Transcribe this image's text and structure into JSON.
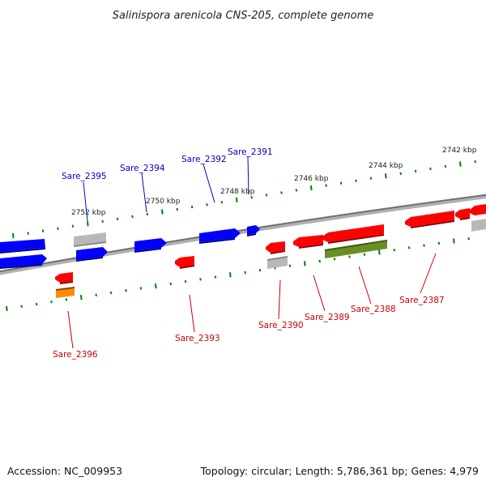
{
  "title": "Salinispora arenicola CNS-205, complete genome",
  "footer": {
    "accession": "Accession: NC_009953",
    "summary": "Topology: circular; Length: 5,786,361 bp; Genes: 4,979"
  },
  "colors": {
    "forward": "#0000ff",
    "reverse": "#ff0000",
    "gray": "#aaaaaa",
    "green": "#6b8e23",
    "orange": "#ff8c00",
    "tick": "#008000",
    "backbone": "#808080"
  },
  "ticks": [
    {
      "label": "2752 kbp"
    },
    {
      "label": "2750 kbp"
    },
    {
      "label": "2748 kbp"
    },
    {
      "label": "2746 kbp"
    },
    {
      "label": "2744 kbp"
    },
    {
      "label": "2742 kbp"
    }
  ],
  "gene_labels": {
    "forward": [
      {
        "name": "Sare_2395"
      },
      {
        "name": "Sare_2394"
      },
      {
        "name": "Sare_2392"
      },
      {
        "name": "Sare_2391"
      }
    ],
    "reverse": [
      {
        "name": "Sare_2396"
      },
      {
        "name": "Sare_2393"
      },
      {
        "name": "Sare_2390"
      },
      {
        "name": "Sare_2389"
      },
      {
        "name": "Sare_2388"
      },
      {
        "name": "Sare_2387"
      }
    ]
  }
}
